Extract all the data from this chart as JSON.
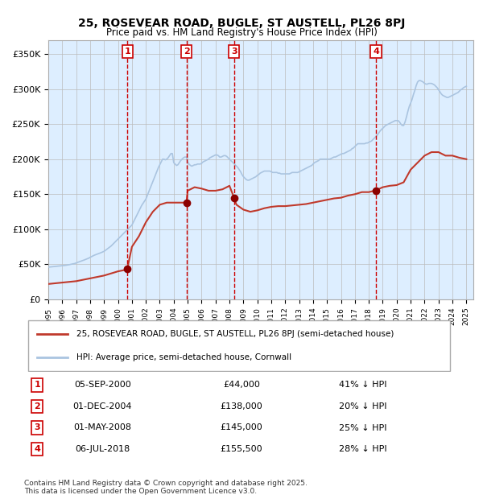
{
  "title": "25, ROSEVEAR ROAD, BUGLE, ST AUSTELL, PL26 8PJ",
  "subtitle": "Price paid vs. HM Land Registry's House Price Index (HPI)",
  "legend_line1": "25, ROSEVEAR ROAD, BUGLE, ST AUSTELL, PL26 8PJ (semi-detached house)",
  "legend_line2": "HPI: Average price, semi-detached house, Cornwall",
  "footer1": "Contains HM Land Registry data © Crown copyright and database right 2025.",
  "footer2": "This data is licensed under the Open Government Licence v3.0.",
  "transactions": [
    {
      "num": 1,
      "date": "05-SEP-2000",
      "price": 44000,
      "pct": "41% ↓ HPI",
      "year": 2000.67
    },
    {
      "num": 2,
      "date": "01-DEC-2004",
      "price": 138000,
      "pct": "20% ↓ HPI",
      "year": 2004.92
    },
    {
      "num": 3,
      "date": "01-MAY-2008",
      "price": 145000,
      "pct": "25% ↓ HPI",
      "year": 2008.33
    },
    {
      "num": 4,
      "date": "06-JUL-2018",
      "price": 155500,
      "pct": "28% ↓ HPI",
      "year": 2018.51
    }
  ],
  "hpi_color": "#aac4e0",
  "price_color": "#c0392b",
  "bg_color": "#ddeeff",
  "grid_color": "#bbbbbb",
  "vline_color": "#cc0000",
  "marker_color": "#8b0000",
  "box_color": "#cc0000",
  "ylim": [
    0,
    370000
  ],
  "xlim_start": 1995.0,
  "xlim_end": 2025.5,
  "hpi_data": {
    "years": [
      1995.0,
      1995.1,
      1995.2,
      1995.3,
      1995.4,
      1995.5,
      1995.6,
      1995.7,
      1995.8,
      1995.9,
      1996.0,
      1996.1,
      1996.2,
      1996.3,
      1996.4,
      1996.5,
      1996.6,
      1996.7,
      1996.8,
      1996.9,
      1997.0,
      1997.1,
      1997.2,
      1997.3,
      1997.4,
      1997.5,
      1997.6,
      1997.7,
      1997.8,
      1997.9,
      1998.0,
      1998.1,
      1998.2,
      1998.3,
      1998.4,
      1998.5,
      1998.6,
      1998.7,
      1998.8,
      1998.9,
      1999.0,
      1999.1,
      1999.2,
      1999.3,
      1999.4,
      1999.5,
      1999.6,
      1999.7,
      1999.8,
      1999.9,
      2000.0,
      2000.1,
      2000.2,
      2000.3,
      2000.4,
      2000.5,
      2000.6,
      2000.7,
      2000.8,
      2000.9,
      2001.0,
      2001.1,
      2001.2,
      2001.3,
      2001.4,
      2001.5,
      2001.6,
      2001.7,
      2001.8,
      2001.9,
      2002.0,
      2002.1,
      2002.2,
      2002.3,
      2002.4,
      2002.5,
      2002.6,
      2002.7,
      2002.8,
      2002.9,
      2003.0,
      2003.1,
      2003.2,
      2003.3,
      2003.4,
      2003.5,
      2003.6,
      2003.7,
      2003.8,
      2003.9,
      2004.0,
      2004.1,
      2004.2,
      2004.3,
      2004.4,
      2004.5,
      2004.6,
      2004.7,
      2004.8,
      2004.9,
      2005.0,
      2005.1,
      2005.2,
      2005.3,
      2005.4,
      2005.5,
      2005.6,
      2005.7,
      2005.8,
      2005.9,
      2006.0,
      2006.1,
      2006.2,
      2006.3,
      2006.4,
      2006.5,
      2006.6,
      2006.7,
      2006.8,
      2006.9,
      2007.0,
      2007.1,
      2007.2,
      2007.3,
      2007.4,
      2007.5,
      2007.6,
      2007.7,
      2007.8,
      2007.9,
      2008.0,
      2008.1,
      2008.2,
      2008.3,
      2008.4,
      2008.5,
      2008.6,
      2008.7,
      2008.8,
      2008.9,
      2009.0,
      2009.1,
      2009.2,
      2009.3,
      2009.4,
      2009.5,
      2009.6,
      2009.7,
      2009.8,
      2009.9,
      2010.0,
      2010.1,
      2010.2,
      2010.3,
      2010.4,
      2010.5,
      2010.6,
      2010.7,
      2010.8,
      2010.9,
      2011.0,
      2011.1,
      2011.2,
      2011.3,
      2011.4,
      2011.5,
      2011.6,
      2011.7,
      2011.8,
      2011.9,
      2012.0,
      2012.1,
      2012.2,
      2012.3,
      2012.4,
      2012.5,
      2012.6,
      2012.7,
      2012.8,
      2012.9,
      2013.0,
      2013.1,
      2013.2,
      2013.3,
      2013.4,
      2013.5,
      2013.6,
      2013.7,
      2013.8,
      2013.9,
      2014.0,
      2014.1,
      2014.2,
      2014.3,
      2014.4,
      2014.5,
      2014.6,
      2014.7,
      2014.8,
      2014.9,
      2015.0,
      2015.1,
      2015.2,
      2015.3,
      2015.4,
      2015.5,
      2015.6,
      2015.7,
      2015.8,
      2015.9,
      2016.0,
      2016.1,
      2016.2,
      2016.3,
      2016.4,
      2016.5,
      2016.6,
      2016.7,
      2016.8,
      2016.9,
      2017.0,
      2017.1,
      2017.2,
      2017.3,
      2017.4,
      2017.5,
      2017.6,
      2017.7,
      2017.8,
      2017.9,
      2018.0,
      2018.1,
      2018.2,
      2018.3,
      2018.4,
      2018.5,
      2018.6,
      2018.7,
      2018.8,
      2018.9,
      2019.0,
      2019.1,
      2019.2,
      2019.3,
      2019.4,
      2019.5,
      2019.6,
      2019.7,
      2019.8,
      2019.9,
      2020.0,
      2020.1,
      2020.2,
      2020.3,
      2020.4,
      2020.5,
      2020.6,
      2020.7,
      2020.8,
      2020.9,
      2021.0,
      2021.1,
      2021.2,
      2021.3,
      2021.4,
      2021.5,
      2021.6,
      2021.7,
      2021.8,
      2021.9,
      2022.0,
      2022.1,
      2022.2,
      2022.3,
      2022.4,
      2022.5,
      2022.6,
      2022.7,
      2022.8,
      2022.9,
      2023.0,
      2023.1,
      2023.2,
      2023.3,
      2023.4,
      2023.5,
      2023.6,
      2023.7,
      2023.8,
      2023.9,
      2024.0,
      2024.1,
      2024.2,
      2024.3,
      2024.4,
      2024.5,
      2024.6,
      2024.7,
      2024.8,
      2024.9,
      2025.0
    ],
    "values": [
      46000,
      46200,
      46400,
      46600,
      46800,
      47000,
      47200,
      47400,
      47600,
      47800,
      48000,
      48200,
      48500,
      48800,
      49100,
      49500,
      50000,
      50400,
      50800,
      51200,
      52000,
      52800,
      53500,
      54200,
      55000,
      55700,
      56400,
      57200,
      58000,
      58800,
      60000,
      61000,
      62000,
      63000,
      63800,
      64500,
      65200,
      66000,
      66800,
      67500,
      68500,
      70000,
      71500,
      73000,
      74500,
      76000,
      78000,
      80000,
      82000,
      84000,
      86000,
      88000,
      90000,
      92000,
      94000,
      96000,
      98000,
      100000,
      102000,
      104000,
      106000,
      110000,
      114000,
      118000,
      122000,
      126000,
      130000,
      134000,
      137000,
      140000,
      143000,
      148000,
      153000,
      158000,
      163000,
      168000,
      173000,
      178000,
      183000,
      188000,
      192000,
      196000,
      200000,
      200000,
      199000,
      200000,
      202000,
      205000,
      208000,
      208000,
      195000,
      193000,
      191000,
      192000,
      195000,
      198000,
      200000,
      202000,
      203000,
      203000,
      197000,
      193000,
      191000,
      190000,
      191000,
      192000,
      192000,
      193000,
      193000,
      193000,
      194000,
      196000,
      197000,
      198000,
      199000,
      200000,
      202000,
      203000,
      204000,
      205000,
      206000,
      206000,
      205000,
      203000,
      203000,
      204000,
      205000,
      205000,
      204000,
      202000,
      200000,
      198000,
      196000,
      194000,
      192000,
      190000,
      188000,
      185000,
      182000,
      178000,
      175000,
      173000,
      171000,
      170000,
      170000,
      171000,
      172000,
      173000,
      174000,
      175000,
      177000,
      178000,
      180000,
      181000,
      182000,
      183000,
      183000,
      183000,
      183000,
      183000,
      182000,
      181000,
      181000,
      181000,
      181000,
      180000,
      180000,
      179000,
      179000,
      179000,
      179000,
      179000,
      179000,
      179000,
      180000,
      181000,
      181000,
      181000,
      181000,
      181000,
      182000,
      183000,
      184000,
      185000,
      186000,
      187000,
      188000,
      189000,
      190000,
      191000,
      193000,
      195000,
      196000,
      197000,
      198000,
      200000,
      200000,
      200000,
      200000,
      200000,
      200000,
      200000,
      200000,
      201000,
      202000,
      203000,
      203000,
      204000,
      205000,
      206000,
      207000,
      208000,
      208000,
      209000,
      210000,
      211000,
      212000,
      213000,
      215000,
      216000,
      218000,
      220000,
      222000,
      222000,
      222000,
      222000,
      222000,
      222000,
      223000,
      223000,
      224000,
      225000,
      226000,
      228000,
      230000,
      232000,
      234000,
      237000,
      240000,
      242000,
      244000,
      246000,
      248000,
      249000,
      250000,
      251000,
      252000,
      253000,
      254000,
      255000,
      255000,
      255000,
      253000,
      250000,
      248000,
      248000,
      253000,
      260000,
      268000,
      275000,
      280000,
      285000,
      292000,
      298000,
      305000,
      310000,
      312000,
      312000,
      311000,
      310000,
      308000,
      307000,
      307000,
      308000,
      308000,
      308000,
      307000,
      306000,
      304000,
      302000,
      299000,
      296000,
      293000,
      291000,
      290000,
      289000,
      288000,
      288000,
      289000,
      290000,
      291000,
      292000,
      293000,
      294000,
      295000,
      297000,
      299000,
      300000,
      302000,
      303000,
      304000
    ]
  },
  "price_data": {
    "years": [
      1995.0,
      1995.5,
      1996.0,
      1996.5,
      1997.0,
      1997.5,
      1998.0,
      1998.5,
      1999.0,
      1999.5,
      2000.0,
      2000.5,
      2000.67,
      2000.67,
      2001.0,
      2001.5,
      2002.0,
      2002.5,
      2003.0,
      2003.5,
      2004.0,
      2004.5,
      2004.92,
      2004.92,
      2005.0,
      2005.5,
      2006.0,
      2006.5,
      2007.0,
      2007.5,
      2007.8,
      2008.0,
      2008.33,
      2008.33,
      2008.5,
      2009.0,
      2009.5,
      2010.0,
      2010.5,
      2011.0,
      2011.5,
      2012.0,
      2012.5,
      2013.0,
      2013.5,
      2014.0,
      2014.5,
      2015.0,
      2015.5,
      2016.0,
      2016.5,
      2017.0,
      2017.5,
      2018.0,
      2018.51,
      2018.51,
      2019.0,
      2019.5,
      2020.0,
      2020.5,
      2021.0,
      2021.5,
      2022.0,
      2022.5,
      2023.0,
      2023.5,
      2024.0,
      2024.5,
      2025.0
    ],
    "values": [
      22000,
      23000,
      24000,
      25000,
      26000,
      28000,
      30000,
      32000,
      34000,
      37000,
      40000,
      42000,
      44000,
      44000,
      75000,
      90000,
      110000,
      125000,
      135000,
      138000,
      138000,
      138000,
      138000,
      138000,
      155000,
      160000,
      158000,
      155000,
      155000,
      157000,
      160000,
      162000,
      145000,
      145000,
      135000,
      128000,
      125000,
      127000,
      130000,
      132000,
      133000,
      133000,
      134000,
      135000,
      136000,
      138000,
      140000,
      142000,
      144000,
      145000,
      148000,
      150000,
      153000,
      153000,
      155500,
      155500,
      160000,
      162000,
      163000,
      167000,
      185000,
      195000,
      205000,
      210000,
      210000,
      205000,
      205000,
      202000,
      200000
    ]
  }
}
